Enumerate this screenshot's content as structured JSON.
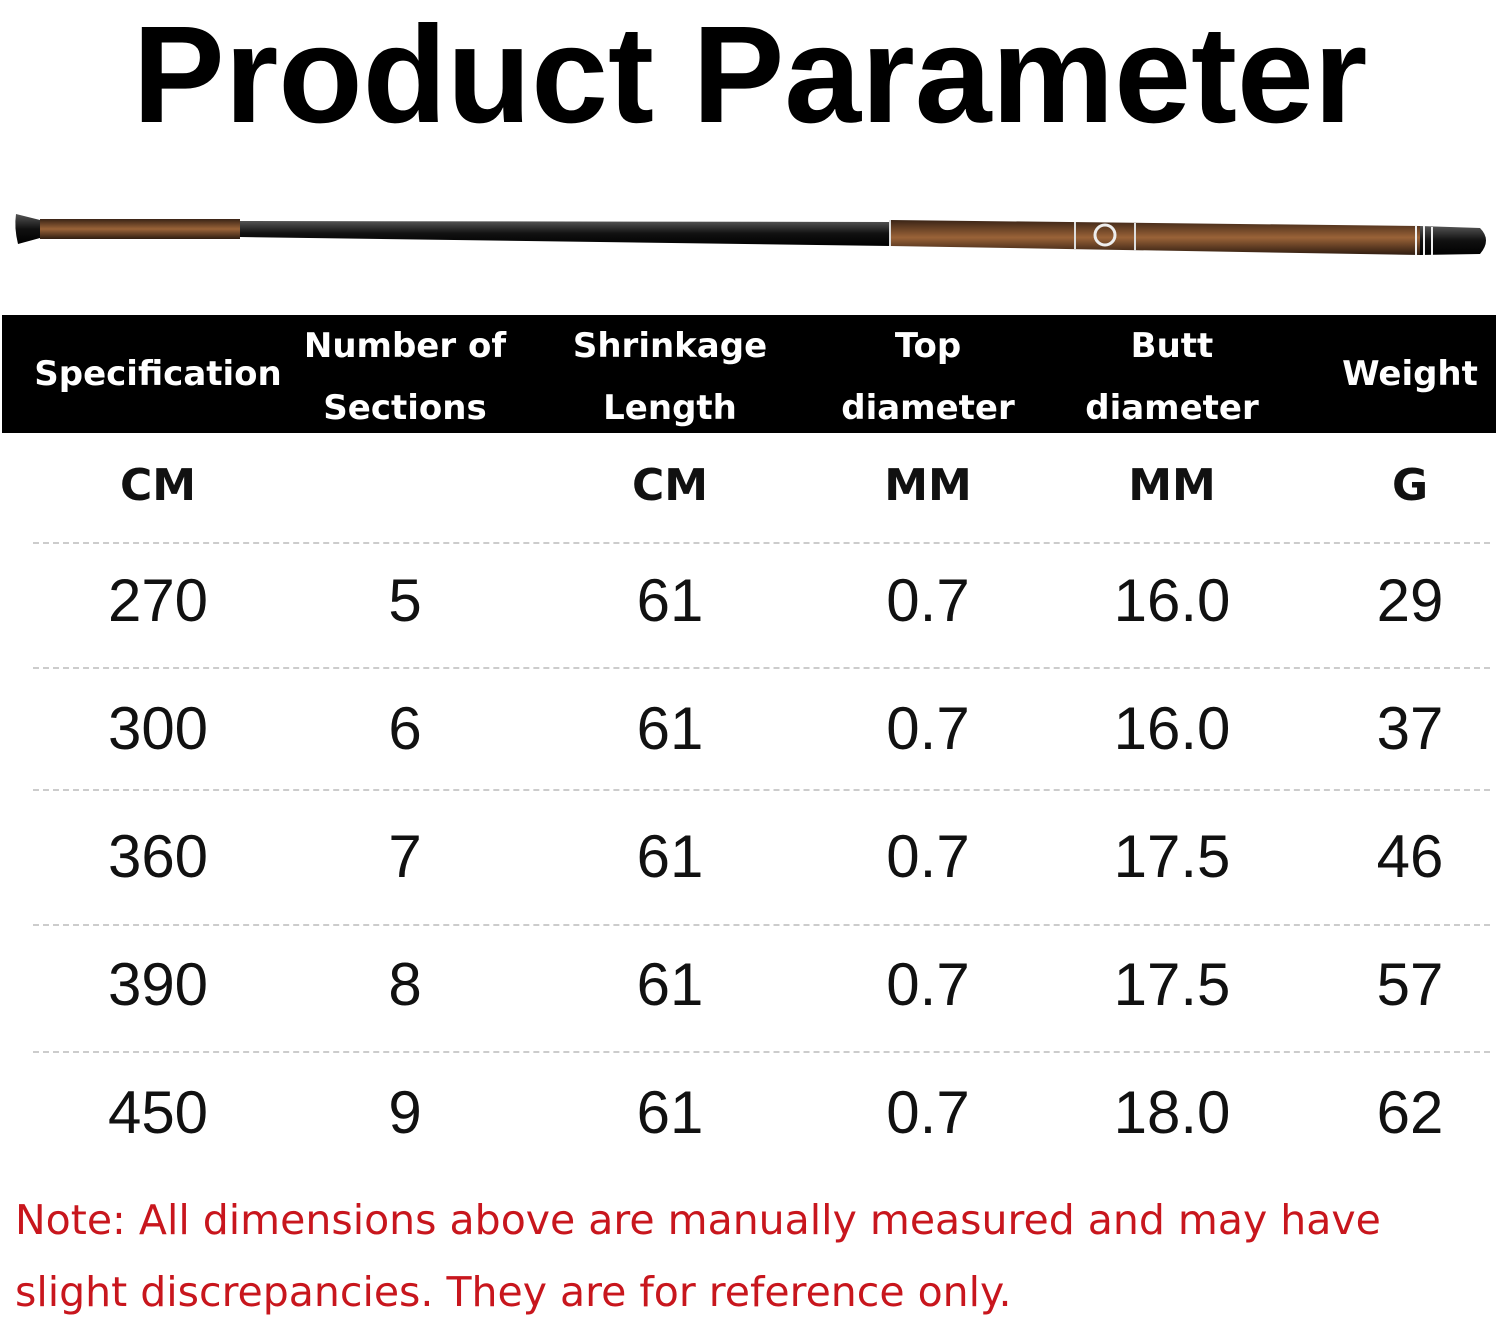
{
  "title": "Product Parameter",
  "table": {
    "header": [
      [
        "Specification"
      ],
      [
        "Number of",
        "Sections"
      ],
      [
        "Shrinkage",
        "Length"
      ],
      [
        "Top",
        "diameter"
      ],
      [
        "Butt",
        "diameter"
      ],
      [
        "Weight"
      ]
    ],
    "units": [
      "CM",
      null,
      "CM",
      "MM",
      "MM",
      "G"
    ],
    "rows": [
      [
        "270",
        "5",
        "61",
        "0.7",
        "16.0",
        "29"
      ],
      [
        "300",
        "6",
        "61",
        "0.7",
        "16.0",
        "37"
      ],
      [
        "360",
        "7",
        "61",
        "0.7",
        "17.5",
        "46"
      ],
      [
        "390",
        "8",
        "61",
        "0.7",
        "17.5",
        "57"
      ],
      [
        "450",
        "9",
        "61",
        "0.7",
        "18.0",
        "62"
      ]
    ]
  },
  "note": "Note: All dimensions above are manually measured and may have slight discrepancies. They are for reference only."
}
